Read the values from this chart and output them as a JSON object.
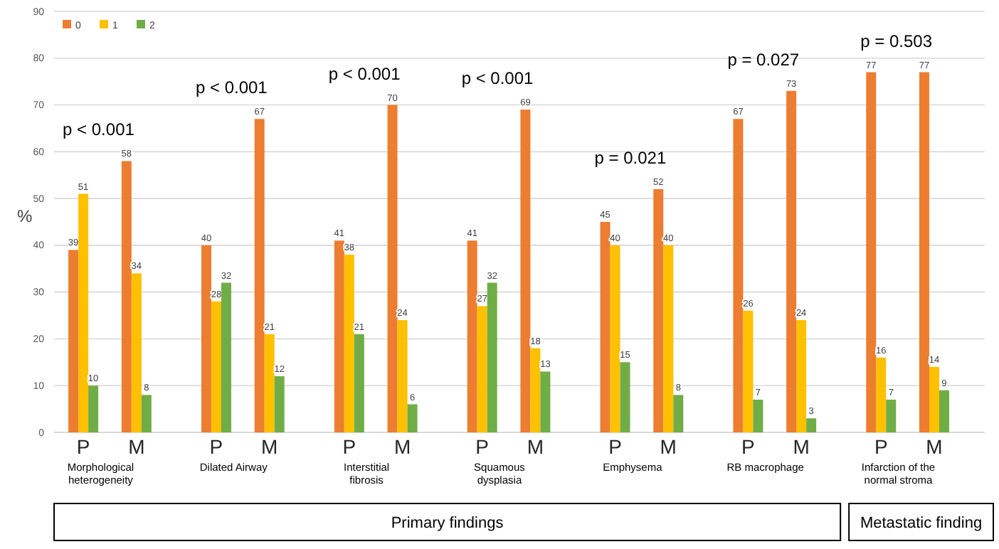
{
  "chart_data": {
    "type": "bar",
    "ylabel": "%",
    "categories": [
      "P",
      "M",
      "P",
      "M",
      "P",
      "M",
      "P",
      "M",
      "P",
      "M",
      "P",
      "M",
      "P",
      "M"
    ],
    "series": [
      {
        "name": "0",
        "color": "#ed7d31",
        "values": [
          39,
          58,
          40,
          67,
          41,
          70,
          41,
          69,
          45,
          52,
          67,
          73,
          77,
          77
        ]
      },
      {
        "name": "1",
        "color": "#ffc000",
        "values": [
          51,
          34,
          28,
          21,
          38,
          24,
          27,
          18,
          40,
          40,
          26,
          24,
          16,
          14
        ]
      },
      {
        "name": "2",
        "color": "#70ad47",
        "values": [
          10,
          8,
          32,
          12,
          21,
          6,
          32,
          13,
          15,
          8,
          7,
          3,
          7,
          9
        ]
      }
    ],
    "ylim": [
      0,
      90
    ],
    "yticks": [
      0,
      10,
      20,
      30,
      40,
      50,
      60,
      70,
      80,
      90
    ],
    "grid": "y",
    "legend": "top left",
    "data_labels": true,
    "annotations": [
      "p < 0.001",
      "p < 0.001",
      "p < 0.001",
      "p < 0.001",
      "p = 0.021",
      "p = 0.027",
      "p = 0.503",
      "Morphological heterogeneity",
      "Dilated Airway",
      "Interstitial fibrosis",
      "Squamous dysplasia",
      "Emphysema",
      "RB macrophage",
      "Infarction of the normal stroma",
      "Primary findings",
      "Metastatic finding"
    ]
  }
}
